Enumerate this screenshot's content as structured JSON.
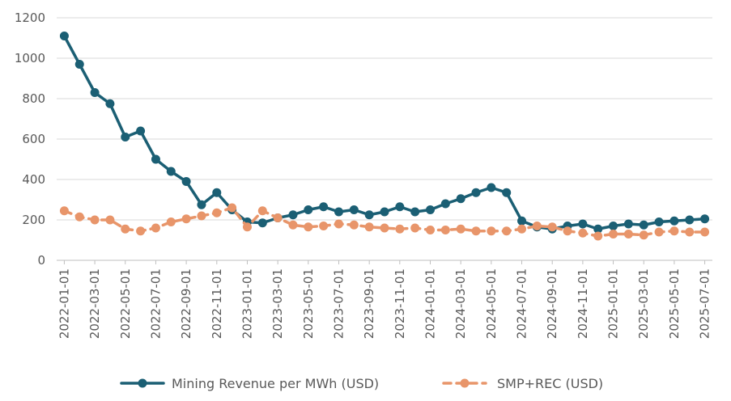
{
  "chart_data": {
    "type": "line",
    "x": [
      "2022-01-01",
      "2022-02-01",
      "2022-03-01",
      "2022-04-01",
      "2022-05-01",
      "2022-06-01",
      "2022-07-01",
      "2022-08-01",
      "2022-09-01",
      "2022-10-01",
      "2022-11-01",
      "2022-12-01",
      "2023-01-01",
      "2023-02-01",
      "2023-03-01",
      "2023-04-01",
      "2023-05-01",
      "2023-06-01",
      "2023-07-01",
      "2023-08-01",
      "2023-09-01",
      "2023-10-01",
      "2023-11-01",
      "2023-12-01",
      "2024-01-01",
      "2024-02-01",
      "2024-03-01",
      "2024-04-01",
      "2024-05-01",
      "2024-06-01",
      "2024-07-01",
      "2024-08-01",
      "2024-09-01",
      "2024-10-01",
      "2024-11-01",
      "2024-12-01",
      "2025-01-01",
      "2025-02-01",
      "2025-03-01",
      "2025-04-01",
      "2025-05-01",
      "2025-06-01",
      "2025-07-01"
    ],
    "x_tick_labels": [
      "2022-01-01",
      "2022-03-01",
      "2022-05-01",
      "2022-07-01",
      "2022-09-01",
      "2022-11-01",
      "2023-01-01",
      "2023-03-01",
      "2023-05-01",
      "2023-07-01",
      "2023-09-01",
      "2023-11-01",
      "2024-01-01",
      "2024-03-01",
      "2024-05-01",
      "2024-07-01",
      "2024-09-01",
      "2024-11-01",
      "2025-01-01",
      "2025-03-01",
      "2025-05-01",
      "2025-07-01"
    ],
    "y_ticks": [
      0,
      200,
      400,
      600,
      800,
      1000,
      1200
    ],
    "ylim": [
      0,
      1200
    ],
    "grid": "horizontal",
    "legend_position": "bottom",
    "series": [
      {
        "name": "Mining Revenue per MWh (USD)",
        "color": "#1b5f74",
        "style": "solid",
        "values": [
          1110,
          970,
          830,
          775,
          610,
          640,
          500,
          440,
          390,
          275,
          335,
          250,
          190,
          185,
          210,
          225,
          250,
          265,
          240,
          250,
          225,
          240,
          265,
          240,
          250,
          280,
          305,
          335,
          360,
          335,
          195,
          165,
          155,
          170,
          180,
          155,
          170,
          180,
          175,
          190,
          195,
          200,
          205
        ]
      },
      {
        "name": "SMP+REC (USD)",
        "color": "#e8956a",
        "style": "dashed",
        "values": [
          245,
          215,
          200,
          200,
          155,
          145,
          160,
          190,
          205,
          220,
          235,
          260,
          165,
          245,
          210,
          175,
          165,
          170,
          180,
          175,
          165,
          160,
          155,
          160,
          150,
          150,
          155,
          145,
          145,
          145,
          155,
          170,
          165,
          145,
          135,
          120,
          130,
          130,
          125,
          140,
          145,
          140,
          140
        ]
      }
    ]
  }
}
